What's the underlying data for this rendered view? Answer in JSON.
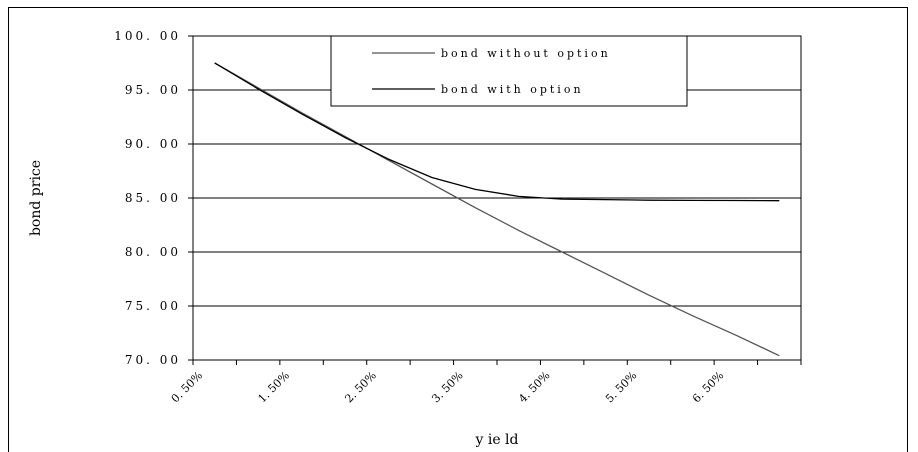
{
  "chart_data": {
    "type": "line",
    "xlabel": "y ie ld",
    "ylabel": "bond price",
    "x_tick_labels": [
      "0. 50%",
      "1. 50%",
      "2. 50%",
      "3. 50%",
      "4. 50%",
      "5. 50%",
      "6. 50%"
    ],
    "x_tick_values": [
      0.5,
      1.5,
      2.5,
      3.5,
      4.5,
      5.5,
      6.5
    ],
    "xlim": [
      0.5,
      7.5
    ],
    "y_tick_labels": [
      "70. 00",
      "75. 00",
      "80. 00",
      "85. 00",
      "90. 00",
      "95. 00",
      "100. 00"
    ],
    "y_tick_values": [
      70,
      75,
      80,
      85,
      90,
      95,
      100
    ],
    "ylim": [
      70,
      100
    ],
    "grid": "horizontal",
    "legend_position": "top",
    "series": [
      {
        "name": "bond without option",
        "color": "#555555",
        "x": [
          0.75,
          1.25,
          1.75,
          2.25,
          2.75,
          3.25,
          3.75,
          4.25,
          4.75,
          5.25,
          5.75,
          6.25,
          6.75,
          7.25
        ],
        "values": [
          97.5,
          95.2,
          92.9,
          90.7,
          88.5,
          86.3,
          84.1,
          82.0,
          80.0,
          78.0,
          76.0,
          74.1,
          72.3,
          70.4
        ]
      },
      {
        "name": "bond with option",
        "color": "#000000",
        "x": [
          0.75,
          1.25,
          1.75,
          2.25,
          2.75,
          3.25,
          3.75,
          4.25,
          4.75,
          5.25,
          5.75,
          6.25,
          6.75,
          7.25
        ],
        "values": [
          97.5,
          95.1,
          92.8,
          90.6,
          88.6,
          86.9,
          85.8,
          85.15,
          84.9,
          84.85,
          84.8,
          84.78,
          84.77,
          84.75
        ]
      }
    ]
  }
}
